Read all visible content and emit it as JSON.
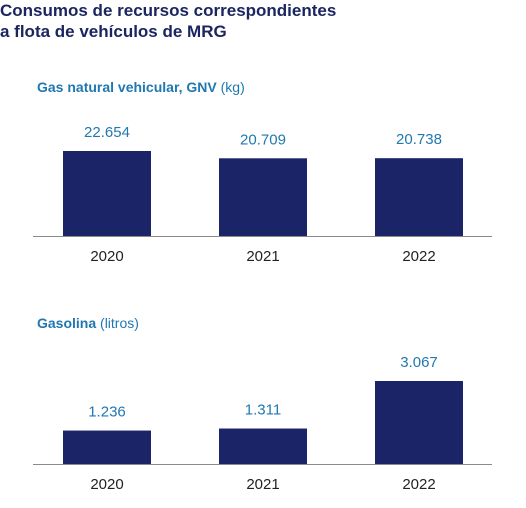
{
  "title_lines": [
    "Consumos de recursos correspondientes",
    "a flota de vehículos de MRG"
  ],
  "colors": {
    "bar": "#1b2466",
    "title": "#1b2660",
    "subtitle": "#1f78b0",
    "axis": "#8a8a8a"
  },
  "chart_data": [
    {
      "type": "bar",
      "title_bold": "Gas natural vehicular, GNV",
      "title_unit": "(kg)",
      "categories": [
        "2020",
        "2021",
        "2022"
      ],
      "values": [
        22654,
        20709,
        20738
      ],
      "value_labels": [
        "22.654",
        "20.709",
        "20.738"
      ]
    },
    {
      "type": "bar",
      "title_bold": "Gasolina",
      "title_unit": "(litros)",
      "categories": [
        "2020",
        "2021",
        "2022"
      ],
      "values": [
        1236,
        1311,
        3067
      ],
      "value_labels": [
        "1.236",
        "1.311",
        "3.067"
      ]
    }
  ]
}
